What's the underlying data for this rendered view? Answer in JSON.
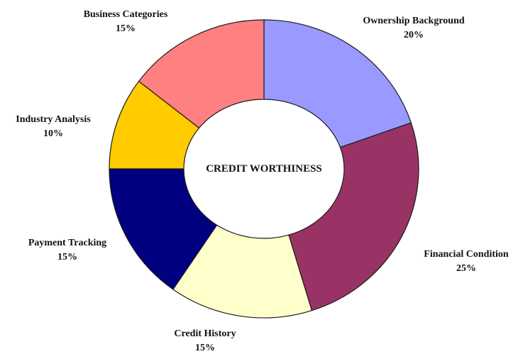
{
  "chart_data": {
    "type": "pie",
    "variant": "donut",
    "center_label": "CREDIT WORTHINESS",
    "slices": [
      {
        "label": "Ownership Background",
        "value": 20,
        "value_label": "20%",
        "color": "#9999ff"
      },
      {
        "label": "Financial Condition",
        "value": 25,
        "value_label": "25%",
        "color": "#993366"
      },
      {
        "label": "Credit History",
        "value": 15,
        "value_label": "15%",
        "color": "#ffffcc"
      },
      {
        "label": "Payment Tracking",
        "value": 15,
        "value_label": "15%",
        "color": "#000080"
      },
      {
        "label": "Industry Analysis",
        "value": 10,
        "value_label": "10%",
        "color": "#ffcc00"
      },
      {
        "label": "Business Categories",
        "value": 15,
        "value_label": "15%",
        "color": "#ff8080"
      }
    ],
    "start_position": "top",
    "direction": "clockwise",
    "legend": "none"
  }
}
